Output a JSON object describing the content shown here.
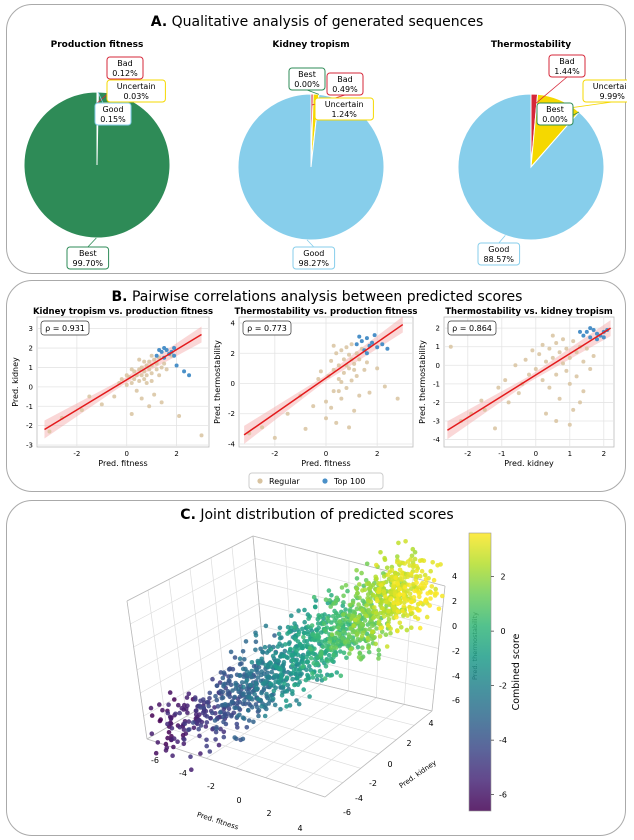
{
  "panels": {
    "a": {
      "label": "A.",
      "title": "Qualitative analysis of generated sequences"
    },
    "b": {
      "label": "B.",
      "title": "Pairwise correlations analysis between predicted scores"
    },
    "c": {
      "label": "C.",
      "title": "Joint distribution of predicted scores"
    }
  },
  "colors": {
    "best": "#2e8b57",
    "good": "#87ceeb",
    "uncertain": "#f5d800",
    "bad": "#d62739",
    "regular": "#d8c3a0",
    "top100": "#4a90c8",
    "fit": "#e31a1c"
  },
  "chart_data": [
    {
      "type": "pie",
      "title": "Production fitness",
      "slices": [
        {
          "label": "Best",
          "value": 99.7,
          "pct": "99.70%"
        },
        {
          "label": "Good",
          "value": 0.15,
          "pct": "0.15%"
        },
        {
          "label": "Uncertain",
          "value": 0.03,
          "pct": "0.03%"
        },
        {
          "label": "Bad",
          "value": 0.12,
          "pct": "0.12%"
        }
      ]
    },
    {
      "type": "pie",
      "title": "Kidney tropism",
      "slices": [
        {
          "label": "Best",
          "value": 0.0,
          "pct": "0.00%"
        },
        {
          "label": "Good",
          "value": 98.27,
          "pct": "98.27%"
        },
        {
          "label": "Uncertain",
          "value": 1.24,
          "pct": "1.24%"
        },
        {
          "label": "Bad",
          "value": 0.49,
          "pct": "0.49%"
        }
      ]
    },
    {
      "type": "pie",
      "title": "Thermostability",
      "slices": [
        {
          "label": "Best",
          "value": 0.0,
          "pct": "0.00%"
        },
        {
          "label": "Good",
          "value": 88.57,
          "pct": "88.57%"
        },
        {
          "label": "Uncertain",
          "value": 9.99,
          "pct": "9.99%"
        },
        {
          "label": "Bad",
          "value": 1.44,
          "pct": "1.44%"
        }
      ]
    },
    {
      "type": "scatter",
      "title": "Kidney tropism vs. production fitness",
      "xlabel": "Pred. fitness",
      "ylabel": "Pred. kidney",
      "rho": "ρ = 0.931",
      "xlim": [
        -3.6,
        3.3
      ],
      "ylim": [
        -3.1,
        3.6
      ],
      "xticks": [
        "-2",
        "0",
        "2"
      ],
      "xtick_values": [
        -2,
        0,
        2
      ],
      "yticks": [
        "3",
        "2",
        "1",
        "0",
        "-1",
        "-2",
        "-3"
      ],
      "ytick_values": [
        3,
        2,
        1,
        0,
        -1,
        -2,
        -3
      ],
      "fit": {
        "x0": -3.3,
        "y0": -2.2,
        "x1": 3.0,
        "y1": 2.7
      },
      "regular": [
        [
          -3.1,
          -2.3
        ],
        [
          -2.6,
          -1.6
        ],
        [
          -1.8,
          -1.2
        ],
        [
          -1.5,
          -0.5
        ],
        [
          -1.0,
          -0.9
        ],
        [
          -0.5,
          -0.5
        ],
        [
          -0.3,
          0.2
        ],
        [
          0.0,
          0.1
        ],
        [
          0.1,
          0.5
        ],
        [
          0.2,
          0.2
        ],
        [
          0.3,
          0.4
        ],
        [
          0.3,
          0.8
        ],
        [
          0.4,
          0.6
        ],
        [
          0.5,
          0.3
        ],
        [
          0.5,
          0.9
        ],
        [
          0.6,
          0.6
        ],
        [
          0.6,
          1.0
        ],
        [
          0.7,
          0.4
        ],
        [
          0.7,
          0.8
        ],
        [
          0.8,
          1.1
        ],
        [
          0.8,
          0.6
        ],
        [
          0.9,
          0.9
        ],
        [
          0.9,
          1.3
        ],
        [
          1.0,
          0.7
        ],
        [
          1.0,
          1.1
        ],
        [
          1.0,
          0.3
        ],
        [
          1.1,
          1.4
        ],
        [
          1.2,
          0.9
        ],
        [
          1.2,
          1.2
        ],
        [
          1.3,
          0.6
        ],
        [
          1.3,
          1.5
        ],
        [
          1.4,
          1.0
        ],
        [
          0.4,
          -0.2
        ],
        [
          0.6,
          -0.6
        ],
        [
          0.9,
          -1.0
        ],
        [
          1.1,
          -0.4
        ],
        [
          0.2,
          -1.4
        ],
        [
          1.5,
          1.2
        ],
        [
          1.6,
          0.9
        ],
        [
          0.0,
          0.6
        ],
        [
          -0.2,
          0.4
        ],
        [
          0.7,
          1.3
        ],
        [
          1.8,
          1.6
        ],
        [
          3.0,
          -2.5
        ],
        [
          2.1,
          -1.5
        ],
        [
          1.4,
          -0.8
        ],
        [
          0.5,
          1.4
        ],
        [
          0.2,
          0.9
        ],
        [
          1.0,
          1.6
        ],
        [
          0.8,
          0.2
        ]
      ],
      "top100": [
        [
          1.2,
          1.6
        ],
        [
          1.4,
          1.8
        ],
        [
          1.5,
          1.5
        ],
        [
          1.6,
          1.9
        ],
        [
          1.7,
          1.7
        ],
        [
          1.8,
          1.8
        ],
        [
          1.9,
          1.6
        ],
        [
          1.5,
          2.0
        ],
        [
          2.0,
          1.1
        ],
        [
          2.3,
          0.8
        ],
        [
          2.5,
          0.6
        ],
        [
          1.9,
          2.0
        ],
        [
          1.3,
          1.9
        ]
      ]
    },
    {
      "type": "scatter",
      "title": "Thermostability vs. production fitness",
      "xlabel": "Pred. fitness",
      "ylabel": "Pred. thermostability",
      "rho": "ρ = 0.773",
      "xlim": [
        -3.4,
        3.4
      ],
      "ylim": [
        -4.2,
        4.4
      ],
      "xticks": [
        "-2",
        "0",
        "2"
      ],
      "xtick_values": [
        -2,
        0,
        2
      ],
      "yticks": [
        "4",
        "2",
        "0",
        "-2",
        "-4"
      ],
      "ytick_values": [
        4,
        2,
        0,
        -2,
        -4
      ],
      "fit": {
        "x0": -3.2,
        "y0": -3.4,
        "x1": 3.0,
        "y1": 3.9
      },
      "regular": [
        [
          -3.0,
          -3.3
        ],
        [
          -2.5,
          -2.9
        ],
        [
          -2.0,
          -3.6
        ],
        [
          -1.5,
          -2.0
        ],
        [
          -1.0,
          -0.8
        ],
        [
          -0.8,
          -3.0
        ],
        [
          -0.5,
          -1.5
        ],
        [
          -0.2,
          0.8
        ],
        [
          0.0,
          -1.2
        ],
        [
          0.0,
          -2.3
        ],
        [
          0.1,
          0.5
        ],
        [
          0.2,
          1.5
        ],
        [
          0.3,
          -0.5
        ],
        [
          0.3,
          0.9
        ],
        [
          0.4,
          2.0
        ],
        [
          0.5,
          0.3
        ],
        [
          0.5,
          1.2
        ],
        [
          0.6,
          2.2
        ],
        [
          0.6,
          -1.0
        ],
        [
          0.7,
          0.7
        ],
        [
          0.7,
          1.6
        ],
        [
          0.8,
          2.4
        ],
        [
          0.8,
          -0.3
        ],
        [
          0.9,
          1.0
        ],
        [
          0.9,
          1.9
        ],
        [
          1.0,
          0.2
        ],
        [
          1.0,
          2.6
        ],
        [
          1.1,
          1.3
        ],
        [
          1.1,
          -1.8
        ],
        [
          1.2,
          2.0
        ],
        [
          1.2,
          0.5
        ],
        [
          1.3,
          1.6
        ],
        [
          1.3,
          -0.8
        ],
        [
          1.4,
          2.3
        ],
        [
          1.5,
          0.9
        ],
        [
          0.4,
          -2.6
        ],
        [
          0.2,
          -1.6
        ],
        [
          1.6,
          1.4
        ],
        [
          2.0,
          1.0
        ],
        [
          2.3,
          -0.2
        ],
        [
          2.8,
          -1.0
        ],
        [
          0.6,
          0.1
        ],
        [
          0.8,
          1.2
        ],
        [
          1.0,
          1.6
        ],
        [
          -0.3,
          0.3
        ],
        [
          1.7,
          -0.6
        ],
        [
          0.9,
          -2.9
        ],
        [
          0.3,
          2.5
        ],
        [
          1.1,
          0.9
        ],
        [
          0.5,
          -0.5
        ]
      ],
      "top100": [
        [
          1.2,
          2.6
        ],
        [
          1.4,
          2.8
        ],
        [
          1.5,
          2.2
        ],
        [
          1.6,
          3.0
        ],
        [
          1.7,
          2.5
        ],
        [
          1.8,
          2.7
        ],
        [
          2.0,
          2.4
        ],
        [
          2.2,
          2.6
        ],
        [
          1.3,
          3.1
        ],
        [
          1.9,
          3.2
        ],
        [
          2.4,
          2.3
        ],
        [
          1.6,
          2.0
        ]
      ]
    },
    {
      "type": "scatter",
      "title": "Thermostability vs. kidney tropism",
      "xlabel": "Pred. kidney",
      "ylabel": "Pred. thermostability",
      "rho": "ρ = 0.864",
      "xlim": [
        -2.7,
        2.3
      ],
      "ylim": [
        -4.4,
        2.6
      ],
      "xticks": [
        "-2",
        "-1",
        "0",
        "1",
        "2"
      ],
      "xtick_values": [
        -2,
        -1,
        0,
        1,
        2
      ],
      "yticks": [
        "2",
        "1",
        "0",
        "-1",
        "-2",
        "-3",
        "-4"
      ],
      "ytick_values": [
        2,
        1,
        0,
        -1,
        -2,
        -3,
        -4
      ],
      "fit": {
        "x0": -2.6,
        "y0": -3.5,
        "x1": 2.2,
        "y1": 2.0
      },
      "regular": [
        [
          -2.5,
          1.0
        ],
        [
          -2.2,
          -3.0
        ],
        [
          -1.9,
          -2.6
        ],
        [
          -1.6,
          -1.9
        ],
        [
          -1.2,
          -3.4
        ],
        [
          -1.1,
          -1.2
        ],
        [
          -0.9,
          -0.8
        ],
        [
          -0.6,
          0.0
        ],
        [
          -0.5,
          -1.5
        ],
        [
          -0.3,
          0.3
        ],
        [
          -0.2,
          -0.5
        ],
        [
          0.0,
          -0.2
        ],
        [
          0.1,
          0.6
        ],
        [
          0.2,
          -0.8
        ],
        [
          0.3,
          0.2
        ],
        [
          0.4,
          0.9
        ],
        [
          0.4,
          -1.2
        ],
        [
          0.5,
          0.4
        ],
        [
          0.6,
          1.2
        ],
        [
          0.6,
          -0.5
        ],
        [
          0.7,
          0.7
        ],
        [
          0.7,
          -1.8
        ],
        [
          0.8,
          0.1
        ],
        [
          0.8,
          1.4
        ],
        [
          0.9,
          -0.3
        ],
        [
          0.9,
          0.9
        ],
        [
          1.0,
          0.4
        ],
        [
          1.0,
          -1.0
        ],
        [
          1.1,
          1.3
        ],
        [
          1.1,
          -2.4
        ],
        [
          1.2,
          0.7
        ],
        [
          1.2,
          -0.6
        ],
        [
          1.3,
          1.0
        ],
        [
          1.4,
          0.2
        ],
        [
          1.4,
          -1.4
        ],
        [
          1.5,
          0.9
        ],
        [
          1.6,
          -0.2
        ],
        [
          1.0,
          -3.2
        ],
        [
          0.3,
          -2.6
        ],
        [
          -0.4,
          -1.0
        ],
        [
          0.5,
          1.6
        ],
        [
          -1.5,
          -2.4
        ],
        [
          1.7,
          0.5
        ],
        [
          0.2,
          1.1
        ],
        [
          -0.1,
          0.8
        ],
        [
          1.3,
          -2.0
        ],
        [
          0.6,
          -3.0
        ],
        [
          -0.8,
          -2.0
        ]
      ],
      "top100": [
        [
          1.4,
          1.6
        ],
        [
          1.5,
          1.8
        ],
        [
          1.6,
          1.5
        ],
        [
          1.7,
          1.9
        ],
        [
          1.8,
          1.7
        ],
        [
          1.9,
          1.6
        ],
        [
          2.0,
          1.8
        ],
        [
          2.1,
          1.9
        ],
        [
          1.6,
          2.0
        ],
        [
          1.8,
          1.4
        ],
        [
          1.3,
          1.8
        ],
        [
          2.0,
          1.5
        ]
      ]
    },
    {
      "type": "scatter",
      "title": "Joint distribution of predicted scores",
      "xlabel": "Pred. fitness",
      "ylabel": "Pred. kidney",
      "zlabel": "Pred. thermostability",
      "colorbar_label": "Combined score",
      "colorbar_ticks": [
        "2",
        "0",
        "-2",
        "-4",
        "-6"
      ],
      "colorbar_values": [
        2,
        0,
        -2,
        -4,
        -6
      ],
      "colorbar_range": [
        -6.6,
        3.6
      ],
      "xticks": [
        "-6",
        "-4",
        "-2",
        "0",
        "2",
        "4"
      ],
      "yticks": [
        "4",
        "2",
        "0",
        "-2",
        "-4",
        "-6"
      ],
      "zticks": [
        "4",
        "2",
        "0",
        "-2",
        "-4",
        "-6"
      ]
    }
  ],
  "legend": {
    "regular": "Regular",
    "top100": "Top 100"
  }
}
